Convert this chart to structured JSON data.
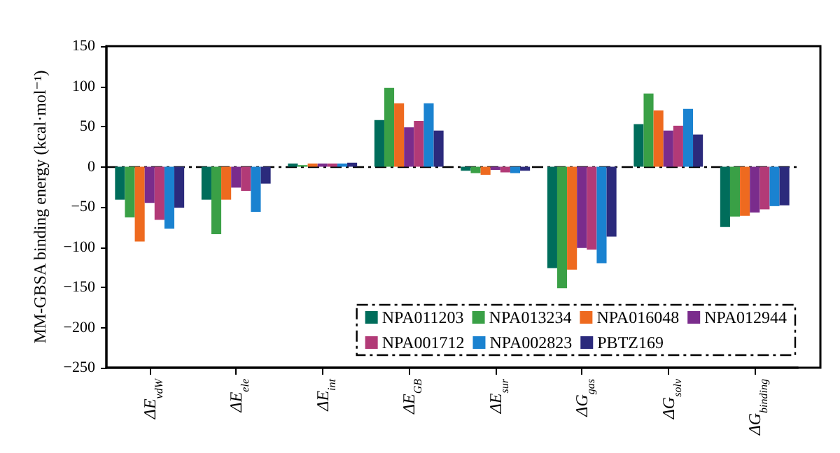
{
  "chart_data": {
    "type": "bar",
    "ylabel": "MM-GBSA binding energy (kcal·mol⁻¹)",
    "categories": [
      "ΔE$_{vdW}$",
      "ΔE$_{ele}$",
      "ΔE$_{int}$",
      "ΔE$_{GB}$",
      "ΔE$_{sur}$",
      "ΔG$_{gas}$",
      "ΔG$_{solv}$",
      "ΔG$_{binding}$"
    ],
    "series": [
      {
        "name": "NPA011203",
        "color": "#006d5b",
        "values": [
          -41,
          -41,
          4,
          58,
          -5,
          -126,
          53,
          -75
        ]
      },
      {
        "name": "NPA013234",
        "color": "#3aa046",
        "values": [
          -63,
          -84,
          2,
          98,
          -8,
          -151,
          91,
          -62
        ]
      },
      {
        "name": "NPA016048",
        "color": "#ee6a1f",
        "values": [
          -93,
          -41,
          4,
          79,
          -10,
          -128,
          70,
          -61
        ]
      },
      {
        "name": "NPA012944",
        "color": "#7a2c8c",
        "values": [
          -45,
          -26,
          4,
          49,
          -4,
          -101,
          45,
          -57
        ]
      },
      {
        "name": "NPA001712",
        "color": "#b23a77",
        "values": [
          -66,
          -30,
          4,
          57,
          -7,
          -103,
          51,
          -53
        ]
      },
      {
        "name": "NPA002823",
        "color": "#1a82d0",
        "values": [
          -77,
          -56,
          4,
          79,
          -8,
          -120,
          72,
          -49
        ]
      },
      {
        "name": "PBTZ169",
        "color": "#2b2a7c",
        "values": [
          -51,
          -21,
          5,
          45,
          -5,
          -87,
          40,
          -48
        ]
      }
    ],
    "ylim": [
      -250,
      150
    ],
    "yticks": [
      -250,
      -200,
      -150,
      -100,
      -50,
      0,
      50,
      100,
      150
    ],
    "ref_lines": [
      {
        "axis": "y",
        "value": 0,
        "color": "#000000",
        "line_style": "dashdot"
      }
    ],
    "legend": "bottom right",
    "grid": false
  }
}
